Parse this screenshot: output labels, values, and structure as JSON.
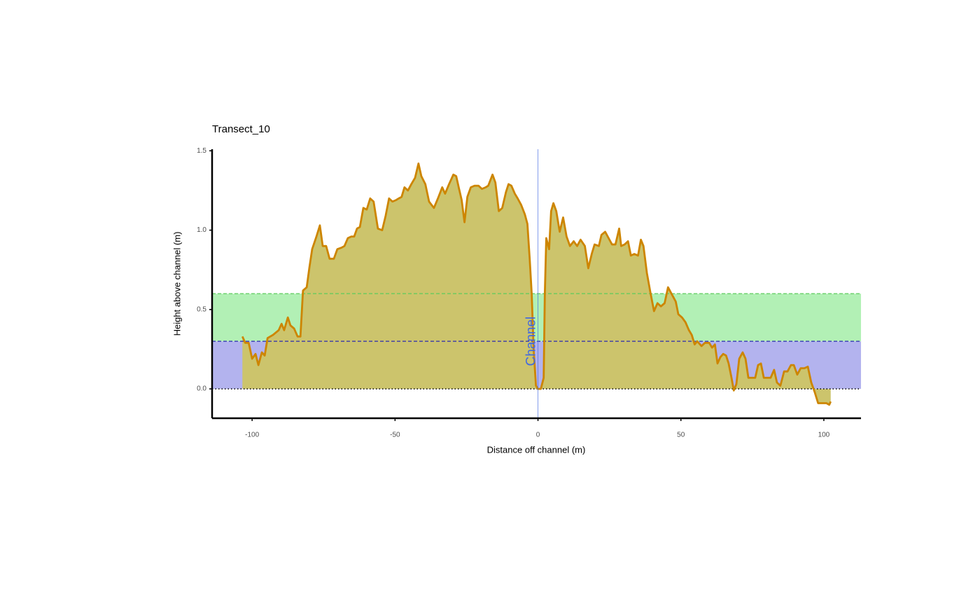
{
  "chart_data": {
    "type": "area",
    "title": "Transect_10",
    "x_label": "Distance off channel (m)",
    "y_label": "Height above channel (m)",
    "xlim": [
      -114,
      113
    ],
    "ylim": [
      -0.185,
      1.51
    ],
    "xticks": [
      -100,
      -50,
      0,
      50,
      100
    ],
    "yticks": [
      {
        "value": 0,
        "label": "0.0"
      },
      0.5,
      {
        "value": 1,
        "label": "1.0"
      },
      1.5
    ],
    "color": "#cd8500",
    "fill": "#ccc46c",
    "bands": [
      {
        "from": 0,
        "to": 0.3,
        "color": "#b3b3ee",
        "line_color": "#2a2ab0"
      },
      {
        "from": 0.3,
        "to": 0.6,
        "color": "#b2f0b5",
        "line_color": "#5ccc5c"
      }
    ],
    "baseline": 0,
    "vline": {
      "x": 0,
      "label": "Channel",
      "color": "#4169e1",
      "label_y": 0.3
    },
    "x": [
      -103.4,
      -102.4,
      -101.2,
      -100,
      -98.8,
      -97.8,
      -96.6,
      -95.6,
      -94.6,
      -92.7,
      -90.7,
      -89.7,
      -88.8,
      -87.5,
      -86.6,
      -85.3,
      -84.1,
      -83.1,
      -82.2,
      -80.9,
      -80,
      -79,
      -77.5,
      -76.3,
      -75.3,
      -74.1,
      -72.9,
      -71.4,
      -70.2,
      -68.7,
      -67.7,
      -66.5,
      -65.3,
      -64.3,
      -63.3,
      -62.3,
      -61.1,
      -59.9,
      -58.7,
      -57.5,
      -56,
      -54.5,
      -53.3,
      -52.1,
      -50.9,
      -49.6,
      -48.7,
      -47.7,
      -46.7,
      -45.5,
      -44.3,
      -43,
      -41.8,
      -40.8,
      -39.4,
      -38.1,
      -36.4,
      -35,
      -33.5,
      -32.5,
      -31.1,
      -29.6,
      -28.6,
      -27.6,
      -26.7,
      -25.7,
      -24.7,
      -23.5,
      -22.2,
      -20.8,
      -19.6,
      -18.3,
      -17.4,
      -15.9,
      -14.9,
      -13.7,
      -12.5,
      -11.2,
      -10.3,
      -9.3,
      -8.1,
      -7.1,
      -5.9,
      -4.6,
      -3.7,
      -2.9,
      -2.2,
      -1.5,
      -0.7,
      0,
      1,
      2,
      2.4,
      2.9,
      3.9,
      4.6,
      5.4,
      6.4,
      7.6,
      8.8,
      10,
      11.2,
      12.5,
      13.7,
      14.9,
      16.4,
      17.6,
      18.8,
      19.8,
      21.3,
      22.2,
      23.5,
      24.7,
      25.9,
      27.1,
      28.4,
      29.1,
      30.3,
      31.5,
      32.5,
      33.7,
      35,
      36,
      36.9,
      38.1,
      39.4,
      40.6,
      41.8,
      43,
      44.3,
      45.5,
      46.7,
      48.2,
      49.1,
      50.4,
      51.6,
      52.8,
      53.8,
      54.8,
      55.7,
      57.2,
      58.4,
      59.9,
      60.9,
      61.9,
      62.8,
      63.8,
      64.8,
      65.8,
      66.7,
      67.7,
      68.5,
      69.4,
      70.4,
      71.6,
      72.6,
      73.6,
      74.8,
      76,
      77,
      78,
      79,
      80.2,
      81.4,
      82.6,
      83.6,
      84.8,
      86.1,
      87.3,
      88.5,
      89.5,
      90.7,
      91.9,
      93.2,
      94.4,
      95.6,
      96.8,
      98,
      99.5,
      100.9,
      101.9,
      102.4
    ],
    "values": [
      0.33,
      0.29,
      0.29,
      0.19,
      0.22,
      0.15,
      0.23,
      0.21,
      0.32,
      0.34,
      0.37,
      0.41,
      0.37,
      0.45,
      0.4,
      0.38,
      0.33,
      0.33,
      0.62,
      0.64,
      0.76,
      0.88,
      0.96,
      1.03,
      0.9,
      0.9,
      0.82,
      0.82,
      0.88,
      0.89,
      0.9,
      0.95,
      0.96,
      0.96,
      1.01,
      1.02,
      1.14,
      1.13,
      1.2,
      1.18,
      1.01,
      1.0,
      1.09,
      1.2,
      1.18,
      1.19,
      1.2,
      1.21,
      1.27,
      1.25,
      1.29,
      1.33,
      1.42,
      1.34,
      1.29,
      1.18,
      1.14,
      1.2,
      1.27,
      1.23,
      1.29,
      1.35,
      1.34,
      1.26,
      1.19,
      1.05,
      1.21,
      1.27,
      1.28,
      1.28,
      1.26,
      1.27,
      1.28,
      1.35,
      1.3,
      1.12,
      1.14,
      1.24,
      1.29,
      1.28,
      1.23,
      1.2,
      1.16,
      1.1,
      1.04,
      0.82,
      0.6,
      0.24,
      0.02,
      0.0,
      0.0,
      0.07,
      0.6,
      0.95,
      0.88,
      1.12,
      1.17,
      1.12,
      0.99,
      1.08,
      0.96,
      0.9,
      0.93,
      0.9,
      0.94,
      0.9,
      0.76,
      0.85,
      0.91,
      0.9,
      0.97,
      0.99,
      0.95,
      0.91,
      0.91,
      1.01,
      0.9,
      0.91,
      0.93,
      0.84,
      0.85,
      0.84,
      0.94,
      0.9,
      0.73,
      0.6,
      0.49,
      0.54,
      0.52,
      0.54,
      0.64,
      0.6,
      0.55,
      0.47,
      0.45,
      0.42,
      0.37,
      0.34,
      0.28,
      0.3,
      0.27,
      0.29,
      0.29,
      0.26,
      0.28,
      0.16,
      0.2,
      0.22,
      0.21,
      0.16,
      0.07,
      -0.01,
      0.03,
      0.19,
      0.23,
      0.19,
      0.07,
      0.07,
      0.07,
      0.15,
      0.16,
      0.07,
      0.07,
      0.07,
      0.12,
      0.04,
      0.02,
      0.11,
      0.11,
      0.15,
      0.15,
      0.09,
      0.13,
      0.13,
      0.14,
      0.04,
      -0.02,
      -0.09,
      -0.09,
      -0.09,
      -0.1,
      -0.08
    ]
  }
}
